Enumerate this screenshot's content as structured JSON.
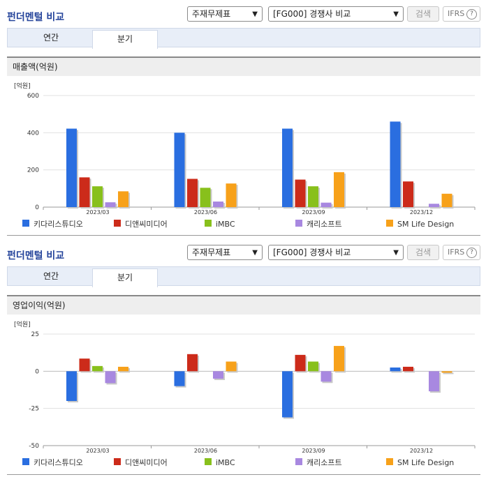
{
  "panels": [
    {
      "title": "펀더멘털 비교",
      "select1": "주재무제표",
      "select2": "[FG000] 경쟁사 비교",
      "search_label": "검색",
      "ifrs_label": "IFRS",
      "tabs": [
        "연간",
        "분기"
      ],
      "section_title": "매출액(억원)"
    },
    {
      "title": "펀더멘털 비교",
      "select1": "주재무제표",
      "select2": "[FG000] 경쟁사 비교",
      "search_label": "검색",
      "ifrs_label": "IFRS",
      "tabs": [
        "연간",
        "분기"
      ],
      "section_title": "영업이익(억원)"
    }
  ],
  "chart_data": [
    {
      "type": "bar",
      "unit": "[억원]",
      "categories": [
        "2023/03",
        "2023/06",
        "2023/09",
        "2023/12"
      ],
      "ylim": [
        0,
        600
      ],
      "yticks": [
        0,
        200,
        400,
        600
      ],
      "grid": true,
      "legend": "bottom",
      "series": [
        {
          "name": "키다리스튜디오",
          "color": "#2a6ee0",
          "values": [
            422,
            400,
            422,
            460
          ]
        },
        {
          "name": "디앤씨미디어",
          "color": "#cc2b1a",
          "values": [
            160,
            152,
            148,
            138
          ]
        },
        {
          "name": "iMBC",
          "color": "#88c01c",
          "values": [
            112,
            104,
            112,
            null
          ]
        },
        {
          "name": "캐리소프트",
          "color": "#a888e0",
          "values": [
            26,
            30,
            24,
            18
          ]
        },
        {
          "name": "SM Life Design",
          "color": "#f7a11a",
          "values": [
            85,
            127,
            188,
            72
          ]
        }
      ]
    },
    {
      "type": "bar",
      "unit": "[억원]",
      "categories": [
        "2023/03",
        "2023/06",
        "2023/09",
        "2023/12"
      ],
      "ylim": [
        -50,
        25
      ],
      "yticks": [
        -50,
        -25,
        0,
        25
      ],
      "grid": true,
      "legend": "bottom",
      "series": [
        {
          "name": "키다리스튜디오",
          "color": "#2a6ee0",
          "values": [
            -20,
            -10,
            -31,
            2.5
          ]
        },
        {
          "name": "디앤씨미디어",
          "color": "#cc2b1a",
          "values": [
            8.5,
            11.5,
            11,
            3
          ]
        },
        {
          "name": "iMBC",
          "color": "#88c01c",
          "values": [
            3.5,
            null,
            6.5,
            null
          ]
        },
        {
          "name": "캐리소프트",
          "color": "#a888e0",
          "values": [
            -8,
            -5,
            -7,
            -13.5
          ]
        },
        {
          "name": "SM Life Design",
          "color": "#f7a11a",
          "values": [
            3,
            6.5,
            17,
            -1
          ]
        }
      ]
    }
  ]
}
